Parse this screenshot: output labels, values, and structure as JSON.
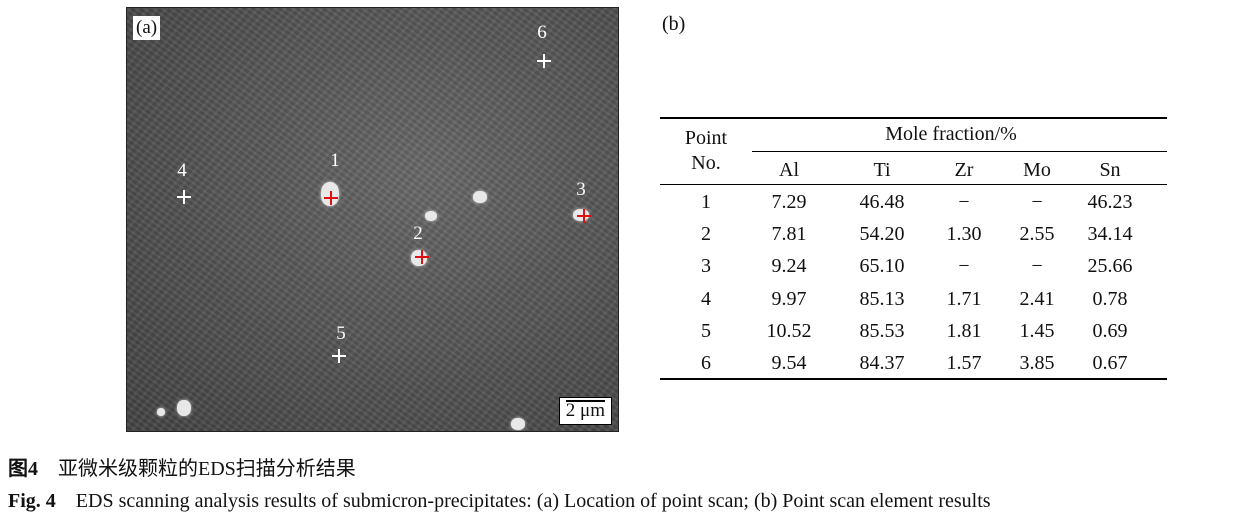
{
  "panel_a": {
    "label": "(a)",
    "scale_bar": "2 μm",
    "points": [
      {
        "label": "1",
        "marker_color": "#d11111"
      },
      {
        "label": "2",
        "marker_color": "#d11111"
      },
      {
        "label": "3",
        "marker_color": "#d11111"
      },
      {
        "label": "4",
        "marker_color": "#ffffff"
      },
      {
        "label": "5",
        "marker_color": "#ffffff"
      },
      {
        "label": "6",
        "marker_color": "#ffffff"
      }
    ]
  },
  "panel_b": {
    "label": "(b)",
    "table": {
      "row_header": [
        "Point",
        "No."
      ],
      "group_header": "Mole fraction/%",
      "columns": [
        "Al",
        "Ti",
        "Zr",
        "Mo",
        "Sn"
      ],
      "rows": [
        [
          "1",
          "7.29",
          "46.48",
          "−",
          "−",
          "46.23"
        ],
        [
          "2",
          "7.81",
          "54.20",
          "1.30",
          "2.55",
          "34.14"
        ],
        [
          "3",
          "9.24",
          "65.10",
          "−",
          "−",
          "25.66"
        ],
        [
          "4",
          "9.97",
          "85.13",
          "1.71",
          "2.41",
          "0.78"
        ],
        [
          "5",
          "10.52",
          "85.53",
          "1.81",
          "1.45",
          "0.69"
        ],
        [
          "6",
          "9.54",
          "84.37",
          "1.57",
          "3.85",
          "0.67"
        ]
      ]
    }
  },
  "caption": {
    "cn_label": "图4",
    "cn_text": "亚微米级颗粒的EDS扫描分析结果",
    "en_label": "Fig. 4",
    "en_text": "EDS scanning analysis results of submicron-precipitates: (a) Location of point scan; (b) Point scan element results"
  }
}
